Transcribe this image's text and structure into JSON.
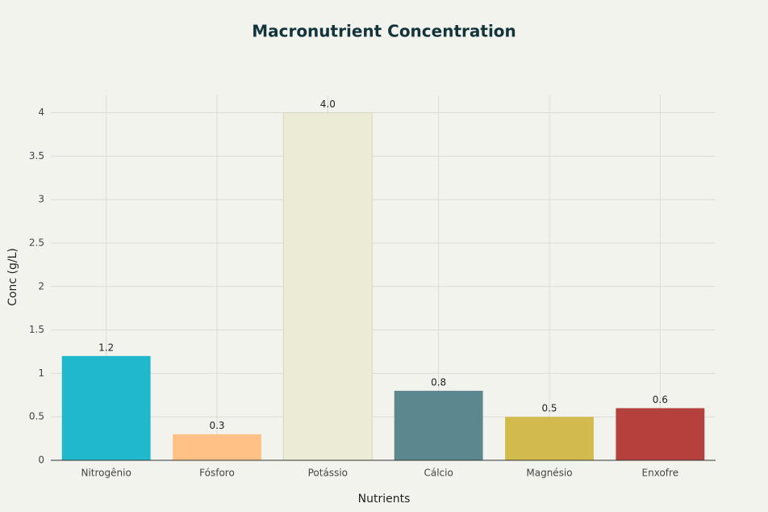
{
  "chart_data": {
    "type": "bar",
    "title": "Macronutrient Concentration",
    "x_label": "Nutrients",
    "y_label": "Conc (g/L)",
    "categories": [
      "Nitrogênio",
      "Fósforo",
      "Potássio",
      "Cálcio",
      "Magnésio",
      "Enxofre"
    ],
    "values": [
      1.2,
      0.3,
      4,
      0.8,
      0.5,
      0.6
    ],
    "value_labels": [
      "1.2",
      "0.3",
      "4.0",
      "0.8",
      "0.5",
      "0.6"
    ],
    "colors": [
      "#1FB8CD",
      "#FFC185",
      "#ECEBD5",
      "#5D878F",
      "#D2BA4C",
      "#B4413C"
    ],
    "ylim": [
      0,
      4.2
    ],
    "yticks": [
      0,
      0.5,
      1,
      1.5,
      2,
      2.5,
      3,
      3.5,
      4
    ],
    "grid": true
  }
}
